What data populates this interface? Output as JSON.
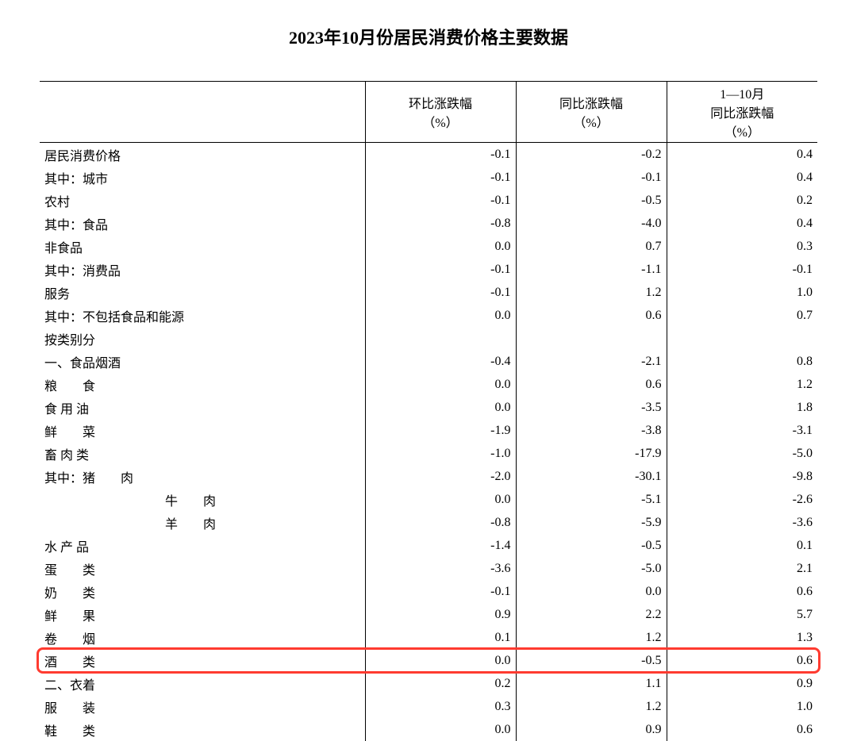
{
  "title": "2023年10月份居民消费价格主要数据",
  "columns": {
    "label_width": 410,
    "col1": "环比涨跌幅\n（%）",
    "col2": "同比涨跌幅\n（%）",
    "col3": "1—10月\n同比涨跌幅\n（%）"
  },
  "highlight": {
    "row_index": 20,
    "color": "#ff3b30"
  },
  "rows": [
    {
      "label": "居民消费价格",
      "indent": "ind0",
      "v1": "-0.1",
      "v2": "-0.2",
      "v3": "0.4"
    },
    {
      "label": "其中：城市",
      "indent": "ind1",
      "v1": "-0.1",
      "v2": "-0.1",
      "v3": "0.4"
    },
    {
      "label": "农村",
      "indent": "ind2",
      "v1": "-0.1",
      "v2": "-0.5",
      "v3": "0.2"
    },
    {
      "label": "其中：食品",
      "indent": "ind1",
      "v1": "-0.8",
      "v2": "-4.0",
      "v3": "0.4"
    },
    {
      "label": "非食品",
      "indent": "ind2",
      "v1": "0.0",
      "v2": "0.7",
      "v3": "0.3"
    },
    {
      "label": "其中：消费品",
      "indent": "ind1",
      "v1": "-0.1",
      "v2": "-1.1",
      "v3": "-0.1"
    },
    {
      "label": "服务",
      "indent": "ind2",
      "v1": "-0.1",
      "v2": "1.2",
      "v3": "1.0"
    },
    {
      "label": "其中：不包括食品和能源",
      "indent": "ind1",
      "v1": "0.0",
      "v2": "0.6",
      "v3": "0.7"
    },
    {
      "label": "按类别分",
      "indent": "ind0",
      "v1": "",
      "v2": "",
      "v3": ""
    },
    {
      "label": "一、食品烟酒",
      "indent": "ind0",
      "v1": "-0.4",
      "v2": "-2.1",
      "v3": "0.8"
    },
    {
      "label": "粮　　食",
      "indent": "ind3",
      "v1": "0.0",
      "v2": "0.6",
      "v3": "1.2"
    },
    {
      "label": "食 用 油",
      "indent": "ind3",
      "v1": "0.0",
      "v2": "-3.5",
      "v3": "1.8"
    },
    {
      "label": "鲜　　菜",
      "indent": "ind3",
      "v1": "-1.9",
      "v2": "-3.8",
      "v3": "-3.1"
    },
    {
      "label": "畜 肉 类",
      "indent": "ind3",
      "v1": "-1.0",
      "v2": "-17.9",
      "v3": "-5.0"
    },
    {
      "label": "其中：猪　　肉",
      "indent": "ind4",
      "v1": "-2.0",
      "v2": "-30.1",
      "v3": "-9.8"
    },
    {
      "label": "牛　　肉",
      "indent": "ind4",
      "extra_pad": 52,
      "v1": "0.0",
      "v2": "-5.1",
      "v3": "-2.6"
    },
    {
      "label": "羊　　肉",
      "indent": "ind4",
      "extra_pad": 52,
      "v1": "-0.8",
      "v2": "-5.9",
      "v3": "-3.6"
    },
    {
      "label": "水 产 品",
      "indent": "ind3",
      "v1": "-1.4",
      "v2": "-0.5",
      "v3": "0.1"
    },
    {
      "label": "蛋　　类",
      "indent": "ind3",
      "v1": "-3.6",
      "v2": "-5.0",
      "v3": "2.1"
    },
    {
      "label": "奶　　类",
      "indent": "ind3",
      "v1": "-0.1",
      "v2": "0.0",
      "v3": "0.6"
    },
    {
      "label": "鲜　　果",
      "indent": "ind3",
      "v1": "0.9",
      "v2": "2.2",
      "v3": "5.7"
    },
    {
      "label": "卷　　烟",
      "indent": "ind3",
      "v1": "0.1",
      "v2": "1.2",
      "v3": "1.3"
    },
    {
      "label": "酒　　类",
      "indent": "ind3",
      "v1": "0.0",
      "v2": "-0.5",
      "v3": "0.6"
    },
    {
      "label": "二、衣着",
      "indent": "ind0",
      "v1": "0.2",
      "v2": "1.1",
      "v3": "0.9"
    },
    {
      "label": "服　　装",
      "indent": "ind3",
      "v1": "0.3",
      "v2": "1.2",
      "v3": "1.0"
    },
    {
      "label": "鞋　　类",
      "indent": "ind3",
      "v1": "0.0",
      "v2": "0.9",
      "v3": "0.6"
    }
  ]
}
